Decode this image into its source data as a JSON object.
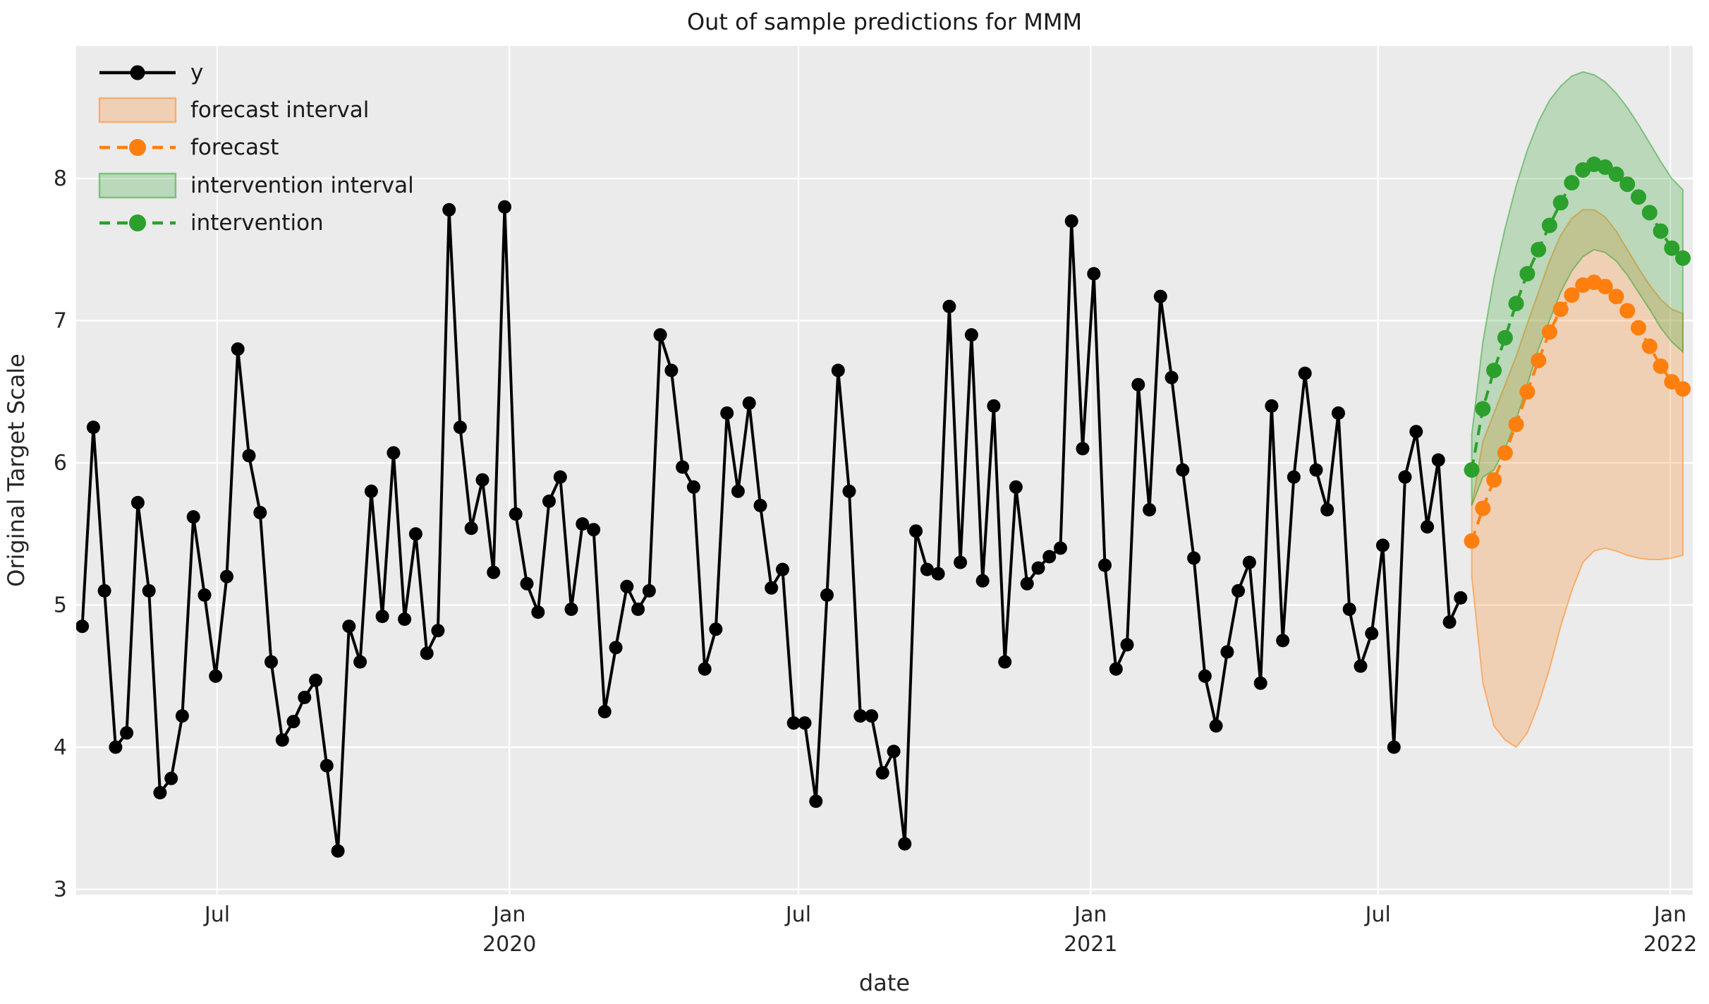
{
  "title": "Out of sample predictions for MMM",
  "colors": {
    "figure_bg": "#ffffff",
    "plot_bg": "#ebebeb",
    "grid": "#ffffff",
    "text": "#262626",
    "y_series": "#000000",
    "forecast": "#ff7f0e",
    "forecast_fill": "rgba(255,127,14,0.25)",
    "forecast_edge": "rgba(255,127,14,0.5)",
    "intervention": "#2ca02c",
    "intervention_fill": "rgba(44,160,44,0.25)",
    "intervention_edge": "rgba(44,160,44,0.5)"
  },
  "legend": {
    "items": [
      {
        "label": "y",
        "type": "line",
        "color_key": "y_series"
      },
      {
        "label": "forecast interval",
        "type": "patch",
        "color_key": "forecast"
      },
      {
        "label": "forecast",
        "type": "dashed-line",
        "color_key": "forecast"
      },
      {
        "label": "intervention interval",
        "type": "patch",
        "color_key": "intervention"
      },
      {
        "label": "intervention",
        "type": "dashed-line",
        "color_key": "intervention"
      }
    ]
  },
  "chart_data": {
    "type": "line",
    "title": "Out of sample predictions for MMM",
    "xlabel": "date",
    "ylabel": "Original Target Scale",
    "ylim": [
      2.95,
      8.95
    ],
    "yticks": [
      3,
      4,
      5,
      6,
      7,
      8
    ],
    "grid": true,
    "legend_position": "upper left",
    "start_date": "2019-04-07",
    "freq_days": 7,
    "xticks": [
      {
        "label": "Jul",
        "year": "",
        "week": 12.143
      },
      {
        "label": "Jan",
        "year": "2020",
        "week": 38.429
      },
      {
        "label": "Jul",
        "year": "",
        "week": 64.429
      },
      {
        "label": "Jan",
        "year": "2021",
        "week": 90.714
      },
      {
        "label": "Jul",
        "year": "",
        "week": 116.571
      },
      {
        "label": "Jan",
        "year": "2022",
        "week": 142.857
      }
    ],
    "series": [
      {
        "name": "y",
        "style": "solid-markers",
        "start_week": 0,
        "values": [
          4.85,
          6.25,
          5.1,
          4.0,
          4.1,
          5.72,
          5.1,
          3.68,
          3.78,
          4.22,
          5.62,
          5.07,
          4.5,
          5.2,
          6.8,
          6.05,
          5.65,
          4.6,
          4.05,
          4.18,
          4.35,
          4.47,
          3.87,
          3.27,
          4.85,
          4.6,
          5.8,
          4.92,
          6.07,
          4.9,
          5.5,
          4.66,
          4.82,
          7.78,
          6.25,
          5.54,
          5.88,
          5.23,
          7.8,
          5.64,
          5.15,
          4.95,
          5.73,
          5.9,
          4.97,
          5.57,
          5.53,
          4.25,
          4.7,
          5.13,
          4.97,
          5.1,
          6.9,
          6.65,
          5.97,
          5.83,
          4.55,
          4.83,
          6.35,
          5.8,
          6.42,
          5.7,
          5.12,
          5.25,
          4.17,
          4.17,
          3.62,
          5.07,
          6.65,
          5.8,
          4.22,
          4.22,
          3.82,
          3.97,
          3.32,
          5.52,
          5.25,
          5.22,
          7.1,
          5.3,
          6.9,
          5.17,
          6.4,
          4.6,
          5.83,
          5.15,
          5.26,
          5.34,
          5.4,
          7.7,
          6.1,
          7.33,
          5.28,
          4.55,
          4.72,
          6.55,
          5.67,
          7.17,
          6.6,
          5.95,
          5.33,
          4.5,
          4.15,
          4.67,
          5.1,
          5.3,
          4.45,
          6.4,
          4.75,
          5.9,
          6.63,
          5.95,
          5.67,
          6.35,
          4.97,
          4.57,
          4.8,
          5.42,
          4.0,
          5.9,
          6.22,
          5.55,
          6.02,
          4.88,
          5.05
        ]
      },
      {
        "name": "forecast",
        "style": "dashed-markers",
        "start_week": 125,
        "values": [
          5.45,
          5.68,
          5.88,
          6.07,
          6.27,
          6.5,
          6.72,
          6.92,
          7.08,
          7.18,
          7.25,
          7.27,
          7.24,
          7.17,
          7.07,
          6.95,
          6.82,
          6.68,
          6.57,
          6.52
        ],
        "lower": [
          5.2,
          4.45,
          4.15,
          4.05,
          4.0,
          4.1,
          4.3,
          4.55,
          4.85,
          5.1,
          5.3,
          5.38,
          5.4,
          5.38,
          5.35,
          5.33,
          5.32,
          5.32,
          5.33,
          5.35
        ],
        "upper": [
          5.7,
          6.15,
          6.35,
          6.55,
          6.75,
          6.98,
          7.2,
          7.42,
          7.6,
          7.72,
          7.78,
          7.78,
          7.73,
          7.63,
          7.5,
          7.37,
          7.25,
          7.15,
          7.08,
          7.05
        ],
        "interval_name": "forecast interval"
      },
      {
        "name": "intervention",
        "style": "dashed-markers",
        "start_week": 125,
        "values": [
          5.95,
          6.38,
          6.65,
          6.88,
          7.12,
          7.33,
          7.5,
          7.67,
          7.83,
          7.97,
          8.06,
          8.1,
          8.08,
          8.03,
          7.96,
          7.87,
          7.76,
          7.63,
          7.51,
          7.44
        ],
        "lower": [
          5.7,
          5.9,
          5.95,
          6.1,
          6.3,
          6.55,
          6.8,
          7.0,
          7.2,
          7.35,
          7.45,
          7.5,
          7.48,
          7.42,
          7.32,
          7.2,
          7.08,
          6.95,
          6.85,
          6.78
        ],
        "upper": [
          6.2,
          6.85,
          7.3,
          7.65,
          7.95,
          8.2,
          8.4,
          8.55,
          8.65,
          8.72,
          8.75,
          8.73,
          8.68,
          8.6,
          8.5,
          8.38,
          8.25,
          8.12,
          8.0,
          7.92
        ],
        "interval_name": "intervention interval"
      }
    ]
  }
}
